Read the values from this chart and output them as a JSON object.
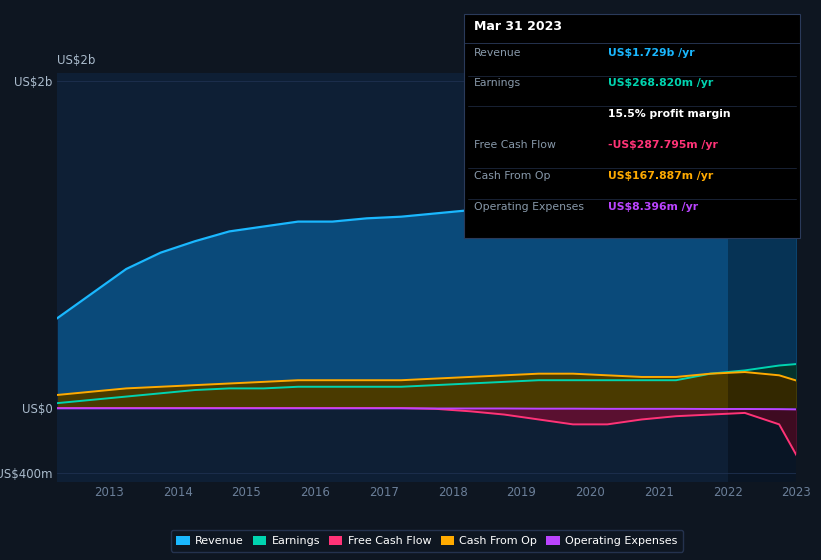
{
  "background_color": "#0e1621",
  "plot_bg_color": "#0e1f35",
  "years": [
    2012.25,
    2012.75,
    2013.25,
    2013.75,
    2014.25,
    2014.75,
    2015.25,
    2015.75,
    2016.25,
    2016.75,
    2017.25,
    2017.75,
    2018.25,
    2018.75,
    2019.25,
    2019.75,
    2020.25,
    2020.75,
    2021.25,
    2021.75,
    2022.25,
    2022.75,
    2023.0
  ],
  "revenue": [
    0.55,
    0.7,
    0.85,
    0.95,
    1.02,
    1.08,
    1.11,
    1.14,
    1.14,
    1.16,
    1.17,
    1.19,
    1.21,
    1.27,
    1.33,
    1.35,
    1.3,
    1.27,
    1.28,
    1.45,
    1.57,
    1.7,
    1.729
  ],
  "earnings": [
    0.03,
    0.05,
    0.07,
    0.09,
    0.11,
    0.12,
    0.12,
    0.13,
    0.13,
    0.13,
    0.13,
    0.14,
    0.15,
    0.16,
    0.17,
    0.17,
    0.17,
    0.17,
    0.17,
    0.21,
    0.23,
    0.26,
    0.26882
  ],
  "free_cash_flow": [
    0.0,
    0.0,
    0.0,
    0.0,
    0.0,
    0.0,
    0.0,
    0.0,
    0.0,
    0.0,
    0.0,
    -0.005,
    -0.02,
    -0.04,
    -0.07,
    -0.1,
    -0.1,
    -0.07,
    -0.05,
    -0.04,
    -0.03,
    -0.1,
    -0.287795
  ],
  "cash_from_op": [
    0.08,
    0.1,
    0.12,
    0.13,
    0.14,
    0.15,
    0.16,
    0.17,
    0.17,
    0.17,
    0.17,
    0.18,
    0.19,
    0.2,
    0.21,
    0.21,
    0.2,
    0.19,
    0.19,
    0.21,
    0.22,
    0.2,
    0.167887
  ],
  "operating_expenses": [
    -0.002,
    -0.002,
    -0.002,
    -0.002,
    -0.002,
    -0.002,
    -0.002,
    -0.002,
    -0.002,
    -0.002,
    -0.002,
    -0.003,
    -0.003,
    -0.003,
    -0.004,
    -0.004,
    -0.005,
    -0.005,
    -0.005,
    -0.006,
    -0.006,
    -0.007,
    -0.008396
  ],
  "revenue_color": "#1ab8ff",
  "earnings_color": "#00d4b0",
  "free_cash_flow_color": "#ff3377",
  "cash_from_op_color": "#ffaa00",
  "operating_expenses_color": "#bb44ff",
  "revenue_fill": "#0a4a7a",
  "earnings_fill": "#0a4a40",
  "free_cash_flow_fill": "#5a1030",
  "cash_from_op_fill": "#4a3a00",
  "operating_expenses_fill": "#330055",
  "ylim_min": -0.45,
  "ylim_max": 2.05,
  "ytick_vals": [
    -0.4,
    0.0,
    2.0
  ],
  "ytick_labels": [
    "-US$400m",
    "US$0",
    "US$2b"
  ],
  "xlabel_color": "#6b7f99",
  "text_color": "#aabbcc",
  "grid_color": "#1e3050",
  "xtick_years": [
    2013,
    2014,
    2015,
    2016,
    2017,
    2018,
    2019,
    2020,
    2021,
    2022,
    2023
  ],
  "shade_from": 2022.0,
  "info_box": {
    "title": "Mar 31 2023",
    "rows": [
      {
        "label": "Revenue",
        "value": "US$1.729b /yr",
        "value_color": "#1ab8ff",
        "label_color": "#8899aa"
      },
      {
        "label": "Earnings",
        "value": "US$268.820m /yr",
        "value_color": "#00d4b0",
        "label_color": "#8899aa"
      },
      {
        "label": "",
        "value": "15.5% profit margin",
        "value_color": "#ffffff",
        "label_color": "#8899aa"
      },
      {
        "label": "Free Cash Flow",
        "value": "-US$287.795m /yr",
        "value_color": "#ff3377",
        "label_color": "#8899aa"
      },
      {
        "label": "Cash From Op",
        "value": "US$167.887m /yr",
        "value_color": "#ffaa00",
        "label_color": "#8899aa"
      },
      {
        "label": "Operating Expenses",
        "value": "US$8.396m /yr",
        "value_color": "#bb44ff",
        "label_color": "#8899aa"
      }
    ]
  },
  "legend_entries": [
    {
      "label": "Revenue",
      "color": "#1ab8ff"
    },
    {
      "label": "Earnings",
      "color": "#00d4b0"
    },
    {
      "label": "Free Cash Flow",
      "color": "#ff3377"
    },
    {
      "label": "Cash From Op",
      "color": "#ffaa00"
    },
    {
      "label": "Operating Expenses",
      "color": "#bb44ff"
    }
  ]
}
